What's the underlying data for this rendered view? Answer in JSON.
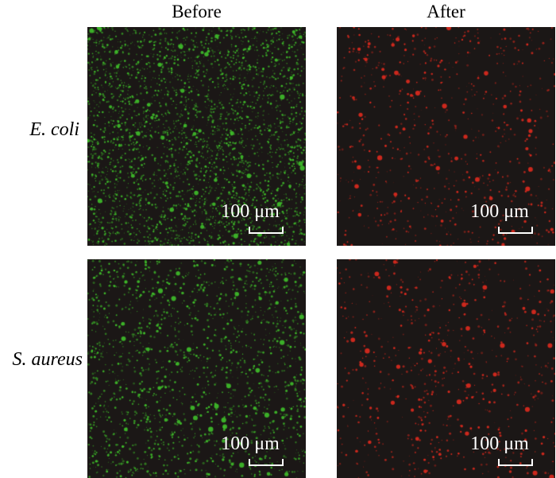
{
  "columns": {
    "before": "Before",
    "after": "After"
  },
  "rows": {
    "ecoli": "E. coli",
    "saureus": "S. aureus"
  },
  "scale_bar": {
    "label": "100 μm"
  },
  "colors": {
    "background": "#1b1716",
    "live_stain": "#3fbf2a",
    "dead_stain": "#e02a1e"
  }
}
